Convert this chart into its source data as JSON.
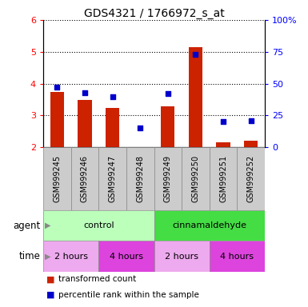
{
  "title": "GDS4321 / 1766972_s_at",
  "samples": [
    "GSM999245",
    "GSM999246",
    "GSM999247",
    "GSM999248",
    "GSM999249",
    "GSM999250",
    "GSM999251",
    "GSM999252"
  ],
  "red_values": [
    3.75,
    3.5,
    3.25,
    2.02,
    3.28,
    5.15,
    2.17,
    2.2
  ],
  "blue_values_pct": [
    47,
    43,
    40,
    15,
    42,
    73,
    20,
    21
  ],
  "ylim_left": [
    2,
    6
  ],
  "ylim_right": [
    0,
    100
  ],
  "yticks_left": [
    2,
    3,
    4,
    5,
    6
  ],
  "yticks_right": [
    0,
    25,
    50,
    75,
    100
  ],
  "ytick_labels_right": [
    "0",
    "25",
    "50",
    "75",
    "100%"
  ],
  "bar_color": "#cc2200",
  "dot_color": "#0000cc",
  "agent_row": [
    {
      "label": "control",
      "start": 0,
      "end": 4,
      "color": "#bbffbb"
    },
    {
      "label": "cinnamaldehyde",
      "start": 4,
      "end": 8,
      "color": "#44dd44"
    }
  ],
  "time_row": [
    {
      "label": "2 hours",
      "start": 0,
      "end": 2,
      "color": "#eeaaee"
    },
    {
      "label": "4 hours",
      "start": 2,
      "end": 4,
      "color": "#dd44dd"
    },
    {
      "label": "2 hours",
      "start": 4,
      "end": 6,
      "color": "#eeaaee"
    },
    {
      "label": "4 hours",
      "start": 6,
      "end": 8,
      "color": "#dd44dd"
    }
  ],
  "legend_red": "transformed count",
  "legend_blue": "percentile rank within the sample",
  "xlabel_agent": "agent",
  "xlabel_time": "time",
  "background_color": "#ffffff"
}
